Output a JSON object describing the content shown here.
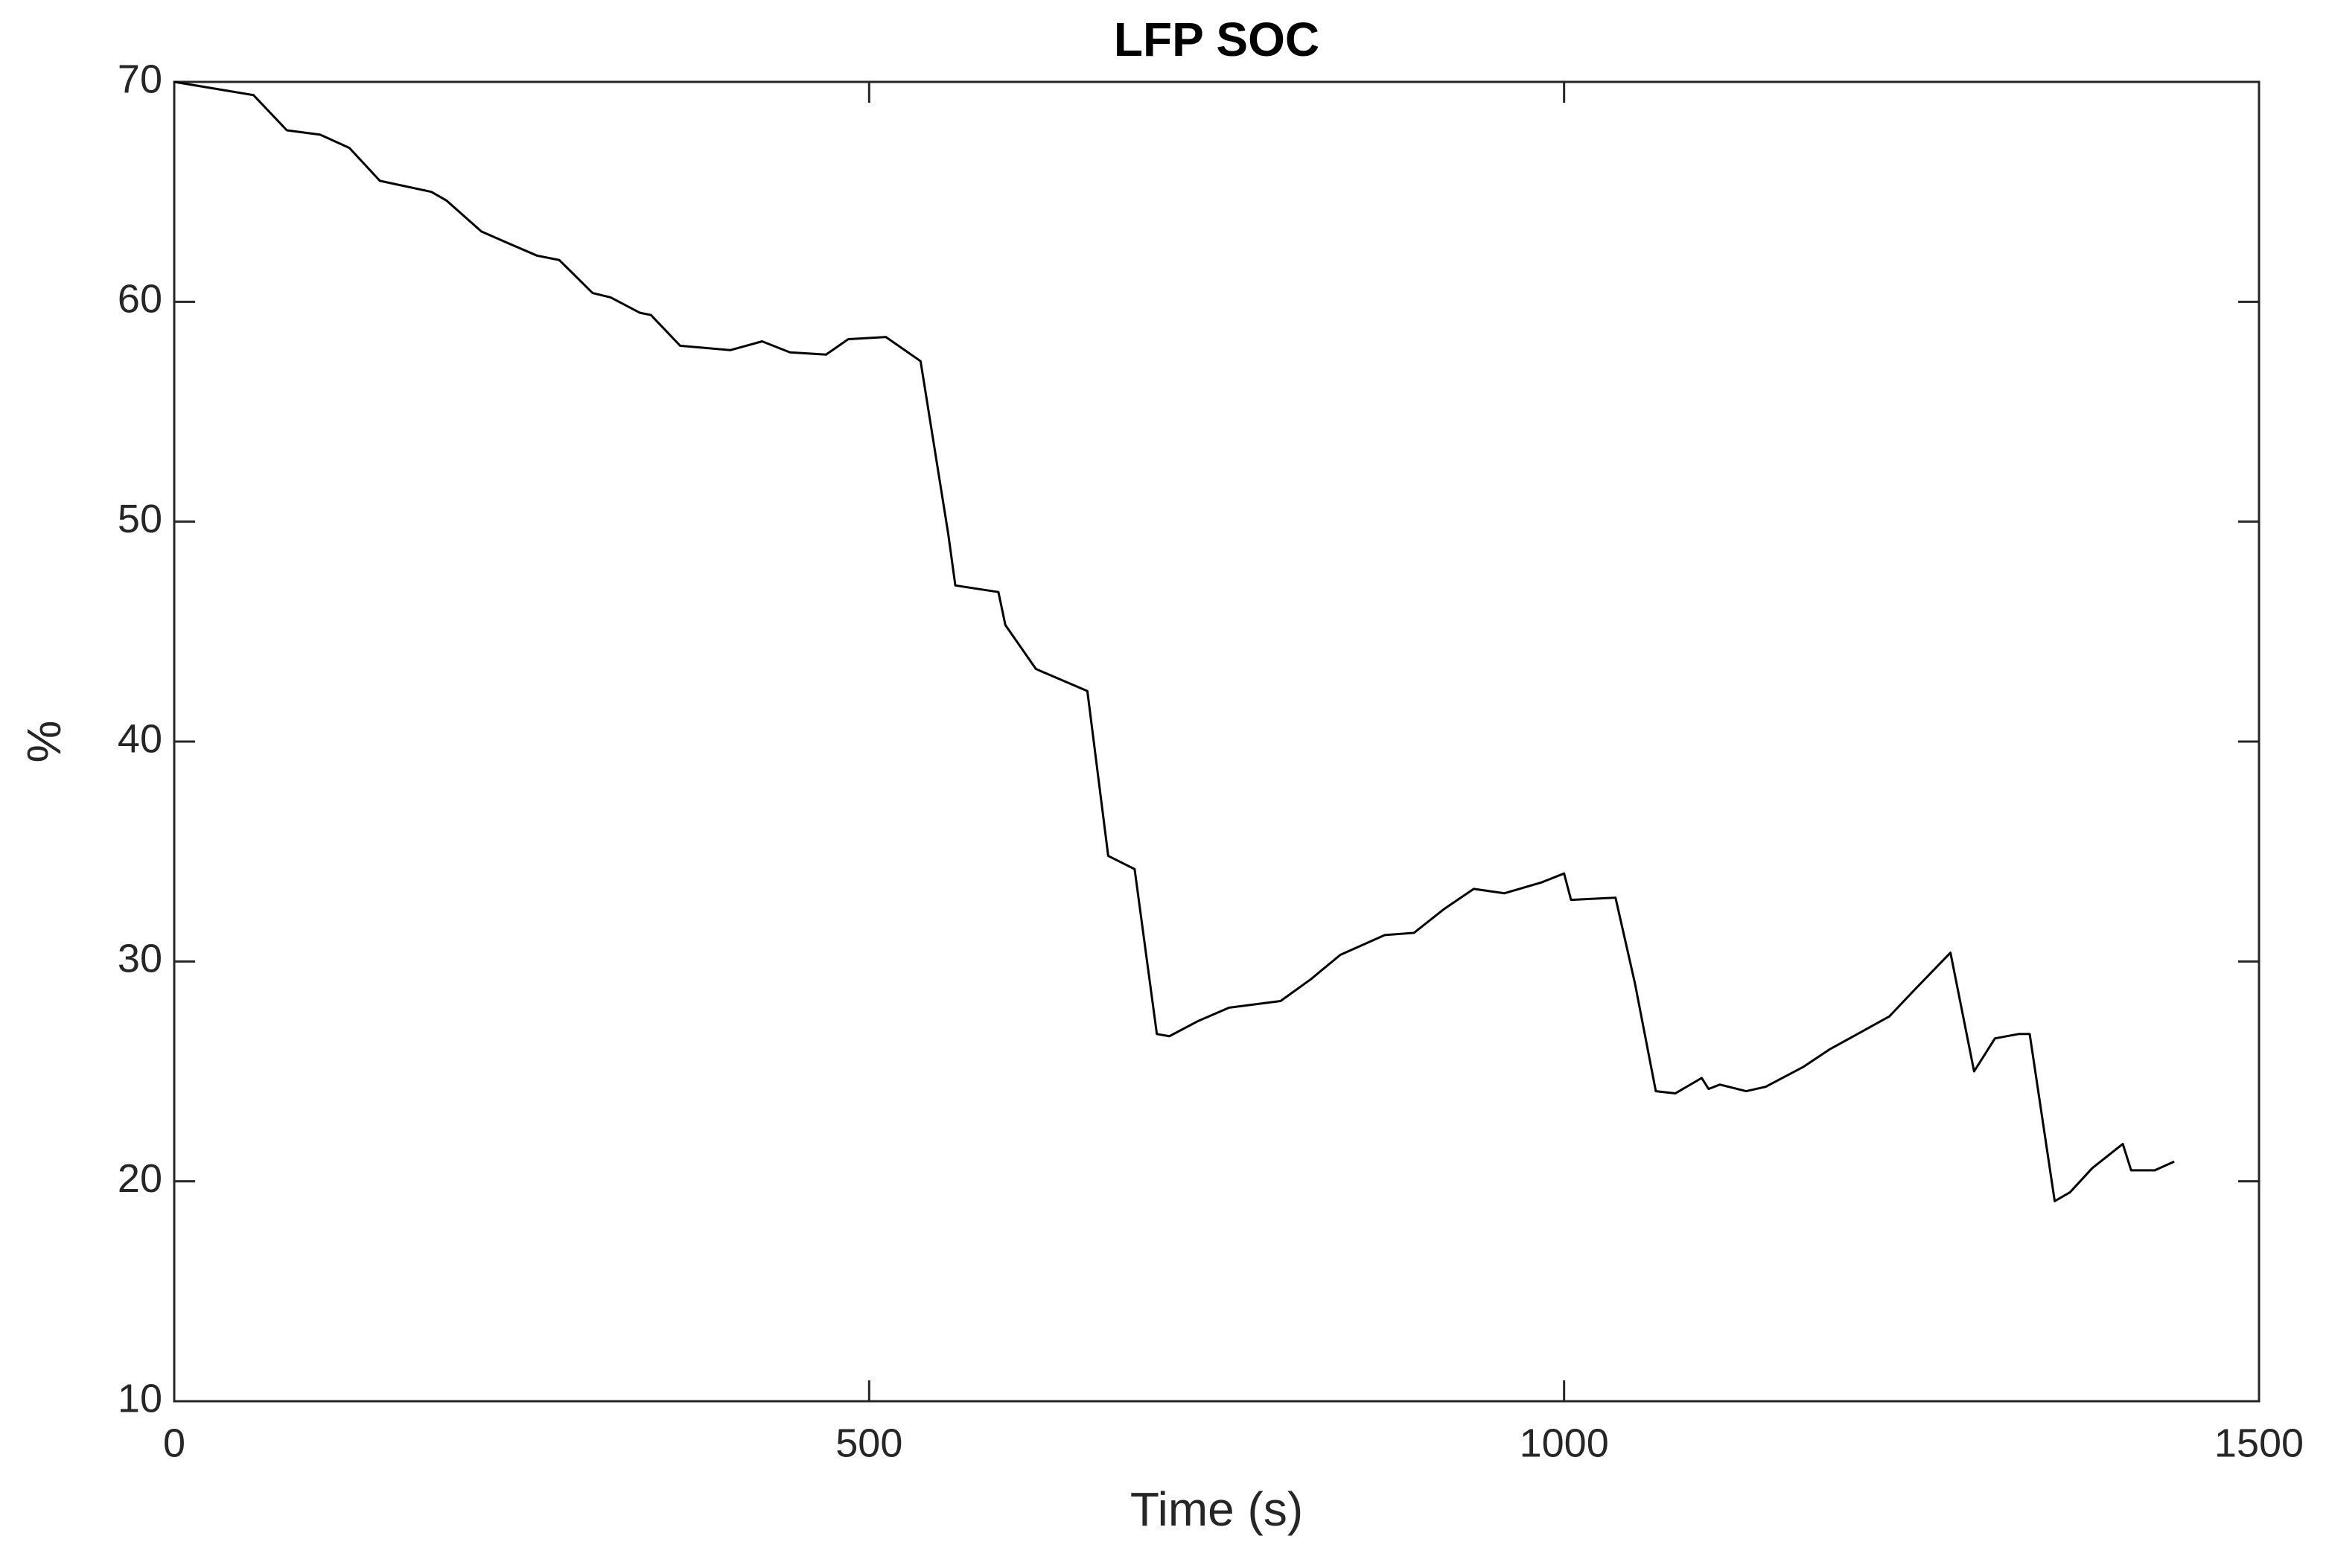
{
  "chart_data": {
    "type": "line",
    "title": "LFP SOC",
    "x_label": "Time (s)",
    "y_label": "%",
    "x": [
      0,
      57,
      81,
      105,
      126,
      148,
      185,
      196,
      221,
      239,
      261,
      277,
      301,
      314,
      335,
      343,
      364,
      400,
      423,
      443,
      469,
      485,
      512,
      537,
      557,
      562,
      593,
      598,
      620,
      657,
      672,
      691,
      707,
      716,
      737,
      759,
      796,
      818,
      839,
      871,
      892,
      914,
      935,
      957,
      984,
      1000,
      1005,
      1037,
      1051,
      1066,
      1080,
      1099,
      1104,
      1112,
      1131,
      1145,
      1172,
      1191,
      1214,
      1234,
      1252,
      1278,
      1295,
      1310,
      1327,
      1335,
      1353,
      1364,
      1380,
      1402,
      1408,
      1425,
      1439
    ],
    "series": [
      {
        "color": "#000000",
        "values": [
          70,
          69.4,
          67.8,
          67.6,
          67.0,
          65.5,
          65.0,
          64.6,
          63.2,
          62.7,
          62.1,
          61.9,
          60.4,
          60.2,
          59.5,
          59.4,
          58.0,
          57.8,
          58.2,
          57.7,
          57.6,
          58.3,
          58.4,
          57.3,
          49.4,
          47.1,
          46.8,
          45.3,
          43.3,
          42.3,
          34.8,
          34.2,
          26.7,
          26.6,
          27.3,
          27.9,
          28.2,
          29.2,
          30.3,
          31.2,
          31.3,
          32.4,
          33.3,
          33.1,
          33.6,
          34.0,
          32.8,
          32.9,
          29.0,
          24.1,
          24.0,
          24.7,
          24.2,
          24.4,
          24.1,
          24.3,
          25.2,
          26.0,
          26.8,
          27.5,
          28.7,
          30.4,
          25.0,
          26.5,
          26.7,
          26.7,
          19.1,
          19.5,
          20.6,
          21.7,
          20.5,
          20.5,
          20.9
        ]
      }
    ],
    "xlim": [
      0,
      1500
    ],
    "xticks": [
      0,
      500,
      1000,
      1500
    ],
    "ylim": [
      10,
      70
    ],
    "yticks": [
      10,
      20,
      30,
      40,
      50,
      60,
      70
    ],
    "grid": false
  }
}
